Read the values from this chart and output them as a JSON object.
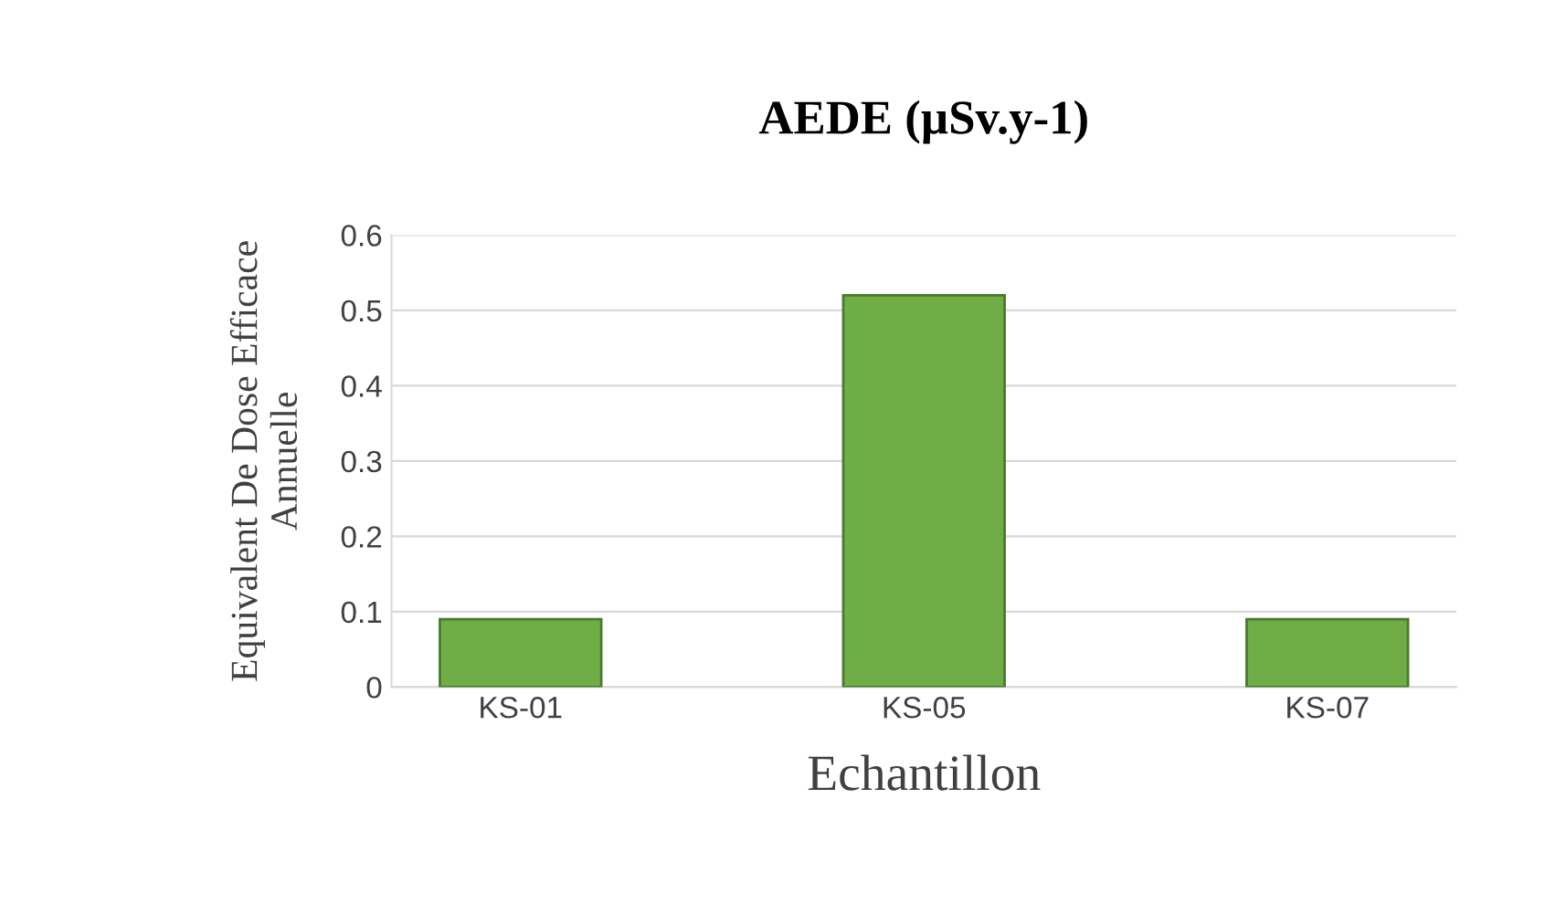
{
  "chart_data": {
    "type": "bar",
    "title": "AEDE (µSv.y-1)",
    "xlabel": "Echantillon",
    "ylabel": "Equivalent De Dose Efficace\nAnnuelle",
    "categories": [
      "KS-01",
      "KS-05",
      "KS-07"
    ],
    "values": [
      0.09,
      0.52,
      0.09
    ],
    "color": "#70ad47",
    "ylim": [
      0,
      0.6
    ],
    "yticks": [
      0,
      0.1,
      0.2,
      0.3,
      0.4,
      0.5,
      0.6
    ],
    "grid": "y"
  }
}
